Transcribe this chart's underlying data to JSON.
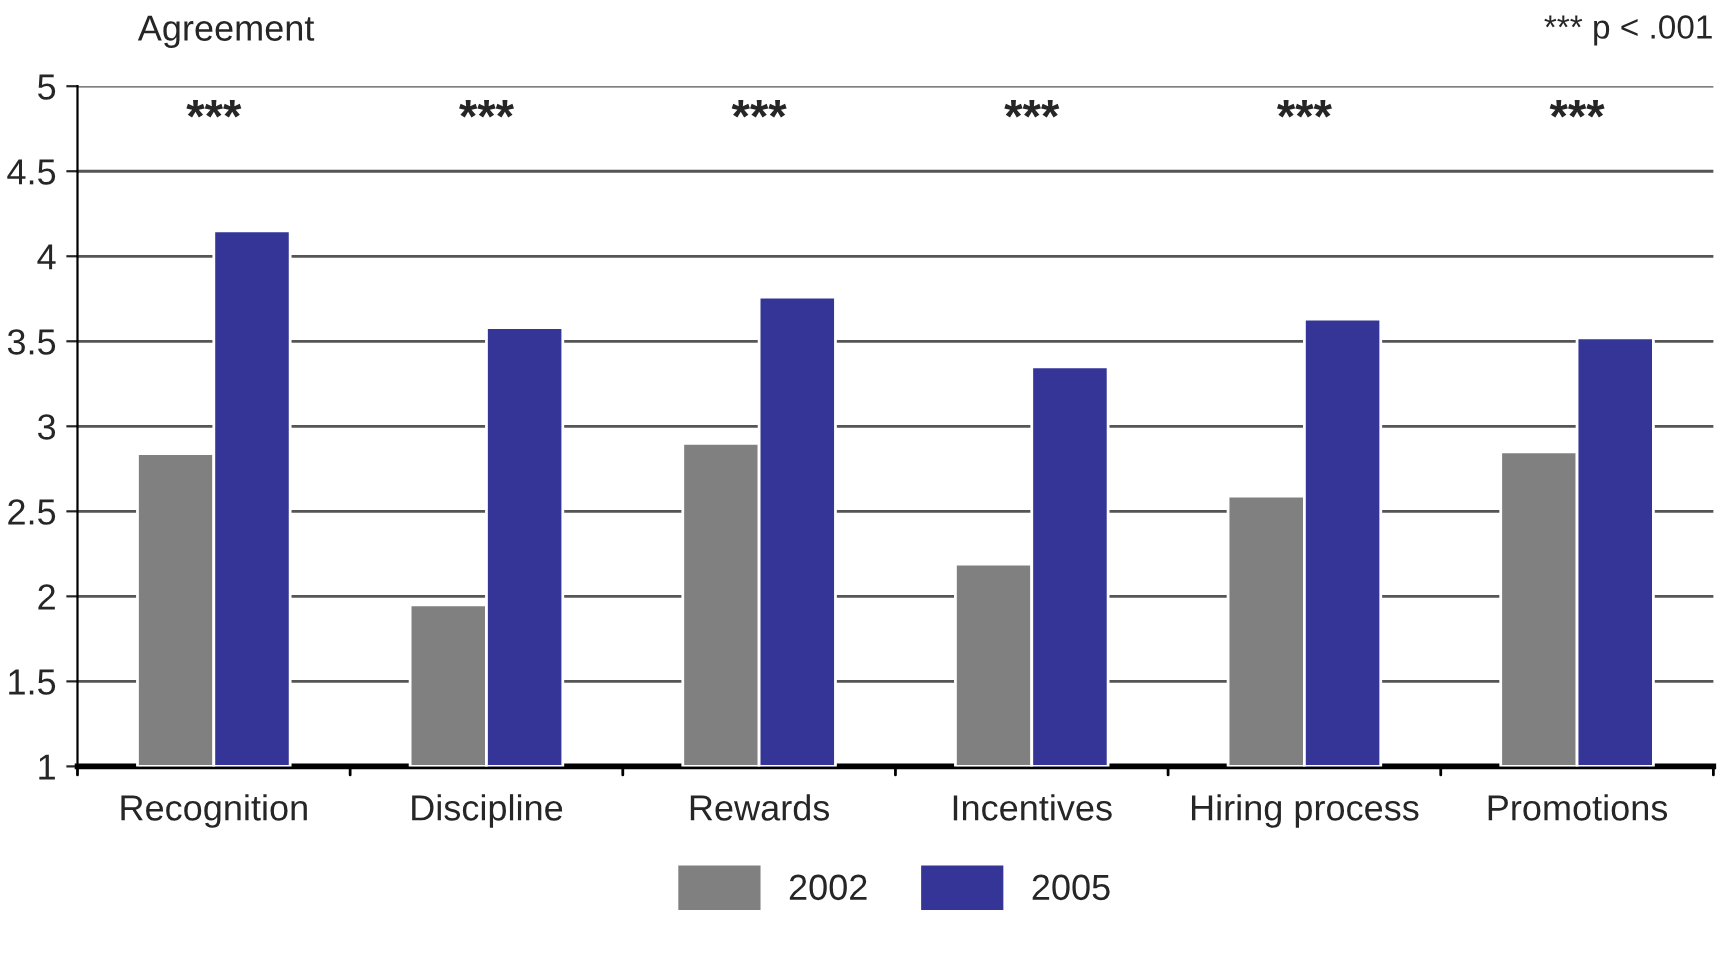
{
  "chart_data": {
    "type": "bar",
    "ylabel": "Agreement",
    "categories": [
      "Recognition",
      "Discipline",
      "Rewards",
      "Incentives",
      "Hiring process",
      "Promotions"
    ],
    "series": [
      {
        "name": "2002",
        "color": "#808080",
        "values": [
          2.84,
          1.95,
          2.9,
          2.19,
          2.59,
          2.85
        ]
      },
      {
        "name": "2005",
        "color": "#353597",
        "values": [
          4.15,
          3.58,
          3.76,
          3.35,
          3.63,
          3.52
        ]
      }
    ],
    "ylim": [
      1,
      5
    ],
    "yticks": [
      1,
      1.5,
      2,
      2.5,
      3,
      3.5,
      4,
      4.5,
      5
    ],
    "grid": "y",
    "legend": "bottom",
    "annotations": [
      "***",
      "***",
      "***",
      "***",
      "***",
      "***",
      "*** p < .001"
    ]
  }
}
